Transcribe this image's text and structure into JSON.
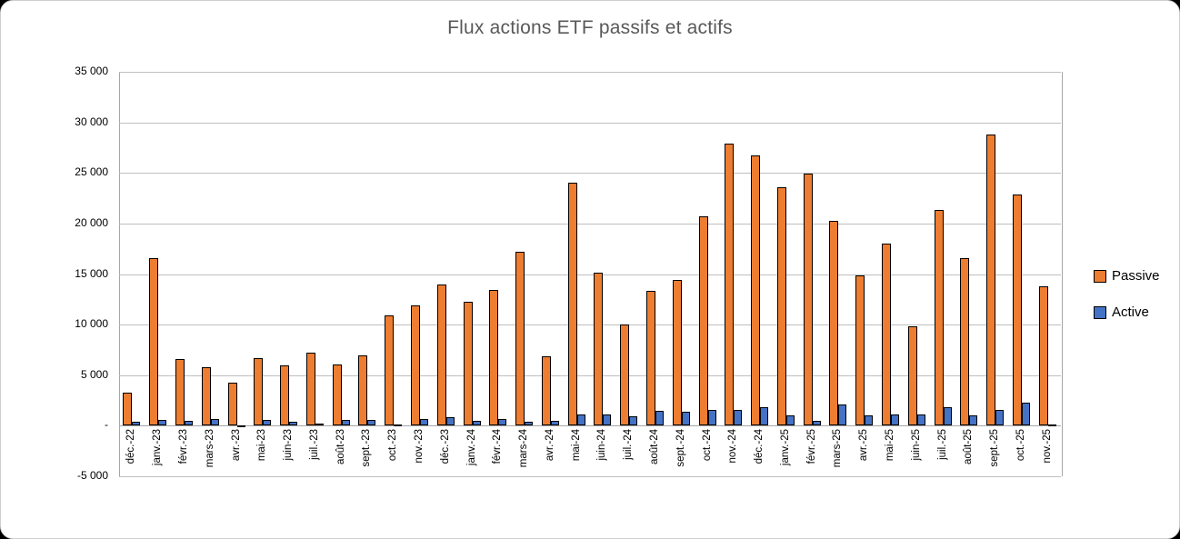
{
  "chart_data": {
    "type": "bar",
    "title": "Flux actions ETF passifs et actifs",
    "title_color": "#595959",
    "categories": [
      "déc.-22",
      "janv.-23",
      "févr.-23",
      "mars-23",
      "avr.-23",
      "mai-23",
      "juin-23",
      "juil.-23",
      "août-23",
      "sept.-23",
      "oct.-23",
      "nov.-23",
      "déc.-23",
      "janv.-24",
      "févr.-24",
      "mars-24",
      "avr.-24",
      "mai-24",
      "juin-24",
      "juil.-24",
      "août-24",
      "sept.-24",
      "oct.-24",
      "nov.-24",
      "déc.-24",
      "janv.-25",
      "févr.-25",
      "mars-25",
      "avr.-25",
      "mai-25",
      "juin-25",
      "juil.-25",
      "août-25",
      "sept.-25",
      "oct.-25",
      "nov.-25"
    ],
    "series": [
      {
        "name": "Passive",
        "color": "#ED7D31",
        "values": [
          3300,
          16600,
          6600,
          5800,
          4300,
          6700,
          6000,
          7200,
          6100,
          7000,
          10900,
          11900,
          14000,
          12300,
          13400,
          17200,
          6900,
          24000,
          15100,
          10000,
          13300,
          14400,
          20700,
          27900,
          26700,
          23600,
          24900,
          20300,
          14900,
          18000,
          9800,
          21300,
          16600,
          28800,
          22900,
          13800
        ]
      },
      {
        "name": "Active",
        "color": "#4472C4",
        "values": [
          400,
          600,
          500,
          700,
          -150,
          600,
          350,
          250,
          600,
          550,
          100,
          650,
          800,
          450,
          650,
          350,
          500,
          1100,
          1100,
          900,
          1500,
          1400,
          1600,
          1600,
          1800,
          1000,
          500,
          2100,
          1000,
          1100,
          1100,
          1800,
          1000,
          1600,
          2300,
          100
        ]
      }
    ],
    "ylim": [
      -5000,
      35000
    ],
    "ytick_step": 5000,
    "ytick_labels": [
      "35 000",
      "30 000",
      "25 000",
      "20 000",
      "15 000",
      "10 000",
      "5 000",
      "-",
      "-5 000"
    ],
    "grid": true,
    "legend_position": "right",
    "bar_outline_color": "#000000",
    "gridline_color": "#BFBFBF"
  }
}
